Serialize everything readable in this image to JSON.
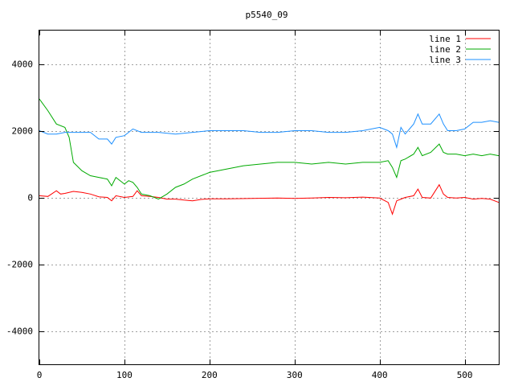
{
  "chart_data": {
    "type": "line",
    "title": "p5540_09",
    "xlabel": "",
    "ylabel": "",
    "xlim": [
      0,
      540
    ],
    "ylim": [
      -5000,
      5000
    ],
    "xticks": [
      0,
      100,
      200,
      300,
      400,
      500
    ],
    "yticks": [
      -4000,
      -2000,
      0,
      2000,
      4000
    ],
    "grid": true,
    "legend_position": "top-right",
    "series": [
      {
        "name": "line 1",
        "color": "#ff0000",
        "x": [
          0,
          10,
          20,
          25,
          30,
          40,
          50,
          60,
          70,
          80,
          85,
          90,
          100,
          110,
          115,
          120,
          130,
          140,
          150,
          160,
          170,
          180,
          190,
          200,
          220,
          250,
          280,
          300,
          320,
          340,
          360,
          380,
          400,
          410,
          415,
          420,
          425,
          430,
          440,
          445,
          450,
          460,
          470,
          475,
          480,
          490,
          500,
          510,
          520,
          530,
          540
        ],
        "y": [
          50,
          30,
          200,
          100,
          120,
          180,
          150,
          100,
          20,
          0,
          -100,
          50,
          0,
          30,
          200,
          50,
          30,
          0,
          -50,
          -50,
          -80,
          -100,
          -60,
          -40,
          -40,
          -30,
          -20,
          -30,
          -20,
          0,
          -10,
          10,
          -20,
          -150,
          -500,
          -100,
          -50,
          0,
          50,
          250,
          0,
          -20,
          380,
          100,
          0,
          -20,
          0,
          -50,
          -30,
          -50,
          -150
        ]
      },
      {
        "name": "line 2",
        "color": "#00aa00",
        "x": [
          0,
          10,
          20,
          30,
          35,
          40,
          50,
          60,
          70,
          80,
          85,
          90,
          100,
          105,
          110,
          115,
          120,
          130,
          140,
          150,
          160,
          170,
          180,
          200,
          220,
          240,
          260,
          280,
          300,
          320,
          340,
          360,
          380,
          400,
          410,
          415,
          420,
          425,
          430,
          440,
          445,
          450,
          460,
          470,
          475,
          480,
          490,
          500,
          510,
          520,
          530,
          540
        ],
        "y": [
          2950,
          2600,
          2200,
          2100,
          1800,
          1050,
          800,
          650,
          600,
          550,
          350,
          600,
          400,
          500,
          450,
          300,
          100,
          50,
          -50,
          100,
          300,
          400,
          550,
          750,
          850,
          950,
          1000,
          1050,
          1050,
          1000,
          1050,
          1000,
          1050,
          1050,
          1100,
          900,
          600,
          1100,
          1150,
          1300,
          1500,
          1250,
          1350,
          1600,
          1350,
          1300,
          1300,
          1250,
          1300,
          1250,
          1300,
          1250
        ]
      },
      {
        "name": "line 3",
        "color": "#1e90ff",
        "x": [
          0,
          10,
          20,
          30,
          40,
          50,
          60,
          70,
          80,
          85,
          90,
          100,
          110,
          120,
          140,
          160,
          180,
          200,
          220,
          240,
          260,
          280,
          300,
          320,
          340,
          360,
          380,
          400,
          410,
          415,
          420,
          425,
          430,
          440,
          445,
          450,
          460,
          470,
          475,
          480,
          490,
          500,
          510,
          520,
          530,
          540
        ],
        "y": [
          2000,
          1900,
          1900,
          1950,
          1950,
          1950,
          1950,
          1750,
          1750,
          1600,
          1800,
          1850,
          2050,
          1950,
          1950,
          1900,
          1950,
          2000,
          2000,
          2000,
          1950,
          1950,
          2000,
          2000,
          1950,
          1950,
          2000,
          2100,
          2000,
          1900,
          1500,
          2100,
          1900,
          2200,
          2500,
          2200,
          2200,
          2500,
          2200,
          2000,
          2000,
          2050,
          2250,
          2250,
          2300,
          2250
        ]
      }
    ]
  }
}
